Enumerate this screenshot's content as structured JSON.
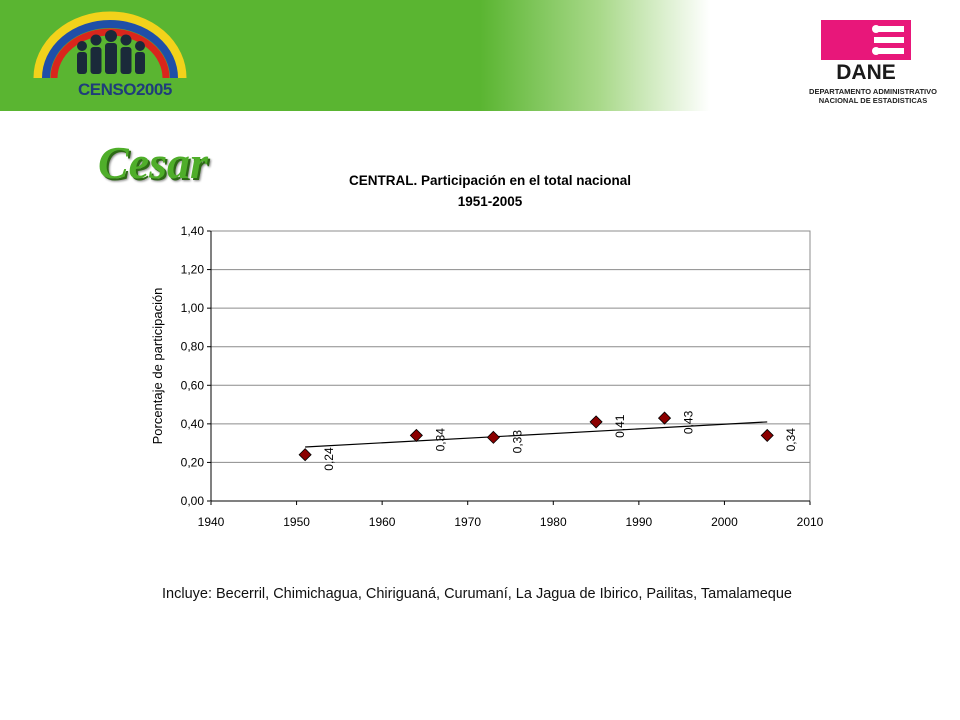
{
  "header": {
    "census_logo_text": "CENSO2005",
    "dane_logo_text": "DANE",
    "dane_caption_line1": "DEPARTAMENTO ADMINISTRATIVO",
    "dane_caption_line2": "NACIONAL DE ESTADISTICAS"
  },
  "page_title": "Cesar",
  "colors": {
    "banner_green": "#5ab531",
    "title_green": "#4fae2a",
    "dane_pink": "#e8177a",
    "marker": "#8b0000",
    "trendline": "#000000"
  },
  "chart_data": {
    "type": "scatter",
    "title_line1": "CENTRAL.  Participación en el total nacional",
    "title_line2": "1951-2005",
    "xlabel": "",
    "ylabel": "Porcentaje de participación",
    "xlim": [
      1940,
      2010
    ],
    "ylim": [
      0,
      1.4
    ],
    "x_ticks": [
      "1940",
      "1950",
      "1960",
      "1970",
      "1980",
      "1990",
      "2000",
      "2010"
    ],
    "y_ticks": [
      "0,00",
      "0,20",
      "0,40",
      "0,60",
      "0,80",
      "1,00",
      "1,20",
      "1,40"
    ],
    "grid": "horizontal",
    "series": [
      {
        "x": [
          1951,
          1964,
          1973,
          1985,
          1993,
          2005
        ],
        "y": [
          0.24,
          0.34,
          0.33,
          0.41,
          0.43,
          0.34
        ],
        "labels": [
          "0,24",
          "0,34",
          "0,33",
          "0,41",
          "0,43",
          "0,34"
        ]
      }
    ],
    "trendline": {
      "x": [
        1951,
        2005
      ],
      "y": [
        0.28,
        0.41
      ]
    }
  },
  "footnote": "Incluye: Becerril, Chimichagua, Chiriguaná, Curumaní, La Jagua de Ibirico, Pailitas, Tamalameque"
}
